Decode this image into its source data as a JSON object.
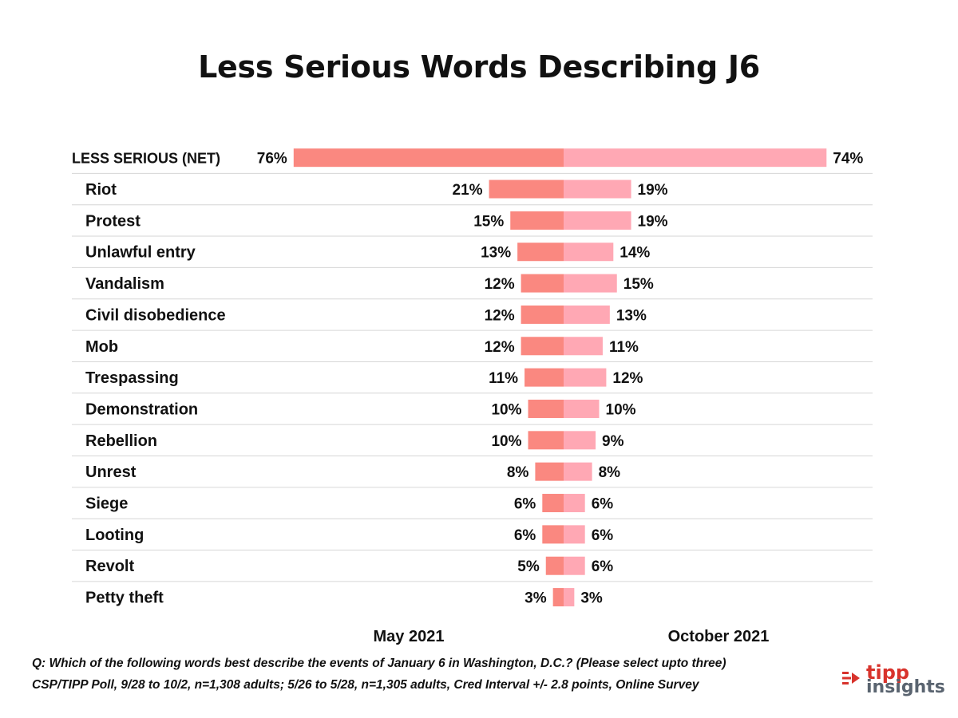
{
  "chart_data": {
    "type": "bar",
    "title": "Less Serious Words Describing J6",
    "categories": [
      "LESS SERIOUS (NET)",
      "Riot",
      "Protest",
      "Unlawful entry",
      "Vandalism",
      "Civil disobedience",
      "Mob",
      "Trespassing",
      "Demonstration",
      "Rebellion",
      "Unrest",
      "Siege",
      "Looting",
      "Revolt",
      "Petty theft"
    ],
    "series": [
      {
        "name": "May 2021",
        "color": "#fa8880",
        "values": [
          76,
          21,
          15,
          13,
          12,
          12,
          12,
          11,
          10,
          10,
          8,
          6,
          6,
          5,
          3
        ]
      },
      {
        "name": "October 2021",
        "color": "#ffa8b4",
        "values": [
          74,
          19,
          19,
          14,
          15,
          13,
          11,
          12,
          10,
          9,
          8,
          6,
          6,
          6,
          3
        ]
      }
    ],
    "value_suffix": "%",
    "xlabel": "",
    "ylabel": "",
    "layout": "diverging-back-to-back",
    "grid": false
  },
  "footnotes": {
    "question": "Q: Which of the following words best describe the events of January 6 in Washington, D.C.? (Please select upto three)",
    "source": "CSP/TIPP Poll, 9/28 to 10/2, n=1,308 adults; 5/26 to 5/28, n=1,305 adults, Cred Interval +/- 2.8 points, Online Survey"
  },
  "logo": {
    "word1": "tipp",
    "word2": "insights",
    "color_primary": "#d8332c",
    "color_secondary": "#5a6470"
  }
}
